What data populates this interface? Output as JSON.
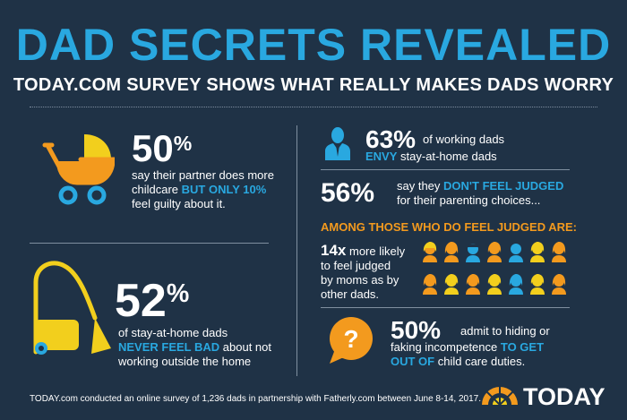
{
  "header": {
    "title": "DAD SECRETS REVEALED",
    "subtitle": "TODAY.COM SURVEY SHOWS WHAT REALLY MAKES DADS WORRY"
  },
  "stat_childcare": {
    "number": "50",
    "pct": "%",
    "line1": "say their partner does more",
    "line2_plain": "childcare ",
    "line2_highlight": "BUT ONLY 10%",
    "line3": "feel guilty about it.",
    "icon": "stroller-icon"
  },
  "stat_stay_home": {
    "number": "52",
    "pct": "%",
    "line1": "of stay-at-home dads",
    "line2_highlight": "NEVER FEEL BAD",
    "line2_plain": " about not",
    "line3": "working outside the home",
    "icon": "vacuum-icon"
  },
  "stat_envy": {
    "number": "63%",
    "line1": "of working dads",
    "line2_highlight": "ENVY",
    "line2_plain": " stay-at-home dads",
    "icon": "businessman-icon"
  },
  "stat_judged": {
    "number": "56%",
    "line1_plain": "say they ",
    "line1_highlight": "DON'T FEEL JUDGED",
    "line2": "for their parenting choices..."
  },
  "judged_section": {
    "heading": "AMONG THOSE WHO DO FEEL JUDGED ARE:",
    "number": "14x",
    "line1": " more likely",
    "line2": "to feel judged",
    "line3": "by moms as by",
    "line4": "other dads."
  },
  "stat_hiding": {
    "number": "50%",
    "line1": "admit to hiding or",
    "line2_plain": "faking incompetence ",
    "line2_highlight": "TO GET",
    "line3_highlight": "OUT OF",
    "line3_plain": " child care duties.",
    "icon": "question-bubble-icon"
  },
  "footer": {
    "text": "TODAY.com conducted an online survey of 1,236 dads in partnership with Fatherly.com between June 8-14, 2017.",
    "logo": "TODAY"
  },
  "colors": {
    "background": "#1f3246",
    "accent_blue": "#29a8e0",
    "accent_orange": "#f39a1e",
    "yellow": "#f2cf1d"
  }
}
